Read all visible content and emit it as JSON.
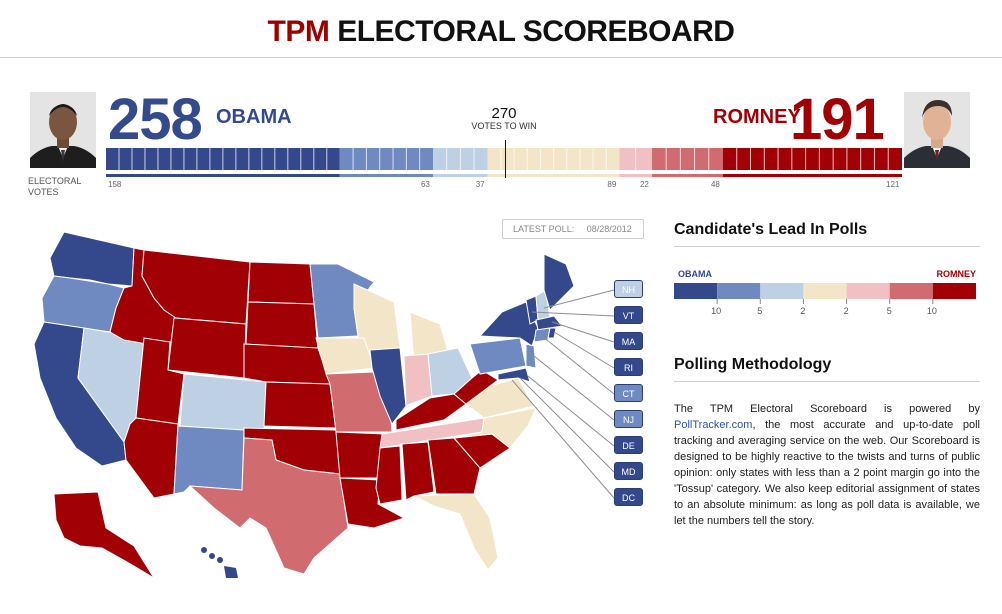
{
  "header": {
    "brand": "TPM",
    "title": "ELECTORAL SCOREBOARD"
  },
  "obama": {
    "name": "OBAMA",
    "electoral_votes": "258"
  },
  "romney": {
    "name": "ROMNEY",
    "electoral_votes": "191"
  },
  "to_win": {
    "number": "270",
    "label": "VOTES TO WIN"
  },
  "electoral_votes_label": "ELECTORAL VOTES",
  "bar": {
    "segments": [
      {
        "votes": 158,
        "color": "#34498b"
      },
      {
        "votes": 63,
        "color": "#6f8ac0"
      },
      {
        "votes": 37,
        "color": "#bdd0e4"
      },
      {
        "votes": 89,
        "color": "#f3e6c8"
      },
      {
        "votes": 22,
        "color": "#f0c0c3"
      },
      {
        "votes": 48,
        "color": "#d06b6f"
      },
      {
        "votes": 121,
        "color": "#a10005"
      }
    ],
    "count_labels": [
      "158",
      "63",
      "37",
      "89",
      "22",
      "48",
      "121"
    ]
  },
  "latest_poll": {
    "label": "LATEST POLL:",
    "date": "08/28/2012"
  },
  "small_states": [
    {
      "abbr": "NH",
      "color": "#bdd0e4"
    },
    {
      "abbr": "VT",
      "color": "#34498b"
    },
    {
      "abbr": "MA",
      "color": "#34498b"
    },
    {
      "abbr": "RI",
      "color": "#34498b"
    },
    {
      "abbr": "CT",
      "color": "#6f8ac0"
    },
    {
      "abbr": "NJ",
      "color": "#6f8ac0"
    },
    {
      "abbr": "DE",
      "color": "#34498b"
    },
    {
      "abbr": "MD",
      "color": "#34498b"
    },
    {
      "abbr": "DC",
      "color": "#34498b"
    }
  ],
  "colors": {
    "obama_strong": "#34498b",
    "obama_lean": "#6f8ac0",
    "obama_slight": "#bdd0e4",
    "tossup": "#f3e6c8",
    "romney_slight": "#f0c0c3",
    "romney_lean": "#d06b6f",
    "romney_strong": "#a10005"
  },
  "lead_section": {
    "title": "Candidate's Lead In Polls",
    "left_label": "OBAMA",
    "right_label": "ROMNEY",
    "ticks": [
      "10",
      "5",
      "2",
      "2",
      "5",
      "10"
    ]
  },
  "methodology": {
    "title": "Polling Methodology",
    "intro": "The TPM Electoral Scoreboard is powered by ",
    "link": "PollTracker.com",
    "body": ", the most accurate and up-to-date poll tracking and averaging service on the web. Our Scoreboard is designed to be highly reactive to the twists and turns of public opinion: only states with less than a 2 point margin go into the 'Tossup' category. We also keep editorial assignment of states to an absolute minimum: as long as poll data is available, we let the numbers tell the story."
  }
}
